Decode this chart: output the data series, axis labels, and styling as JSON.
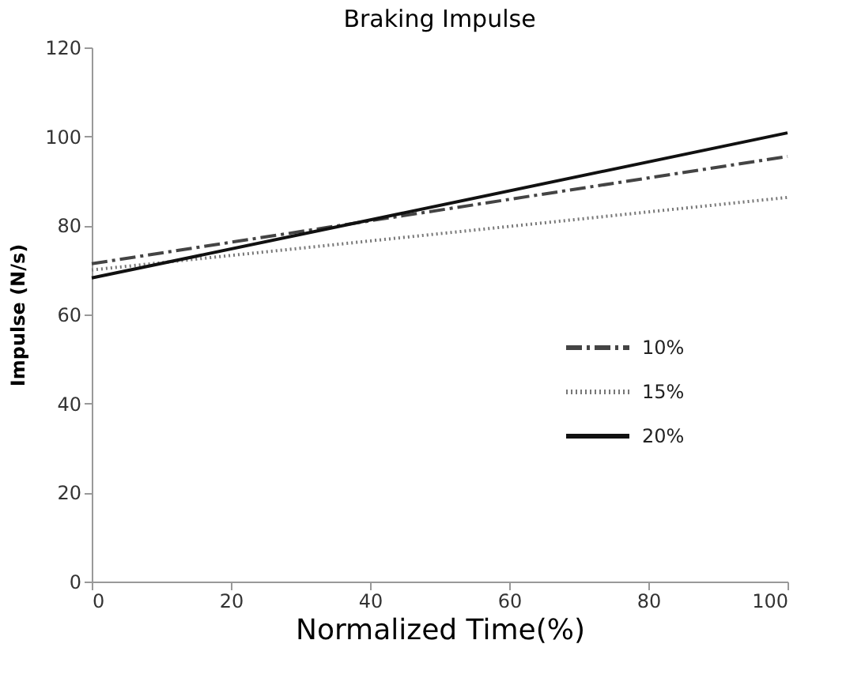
{
  "chart_data": {
    "type": "line",
    "title": "Braking Impulse",
    "xlabel": "Normalized Time(%)",
    "ylabel": "Impulse (N/s)",
    "x": [
      0,
      100
    ],
    "series": [
      {
        "name": "10%",
        "color": "#444444",
        "line_style": "dashed",
        "values": [
          71.4,
          95.5
        ]
      },
      {
        "name": "15%",
        "color": "#777777",
        "line_style": "dotted",
        "values": [
          70,
          86.3
        ]
      },
      {
        "name": "20%",
        "color": "#111111",
        "line_style": "solid",
        "values": [
          68.2,
          100.8
        ]
      }
    ],
    "xlim": [
      0,
      100
    ],
    "xticks": [
      0,
      20,
      40,
      60,
      80,
      100
    ],
    "ylim": [
      0,
      120
    ],
    "yticks": [
      0,
      20,
      40,
      60,
      80,
      100,
      120
    ],
    "grid": false,
    "legend": "right",
    "marker": "none"
  }
}
